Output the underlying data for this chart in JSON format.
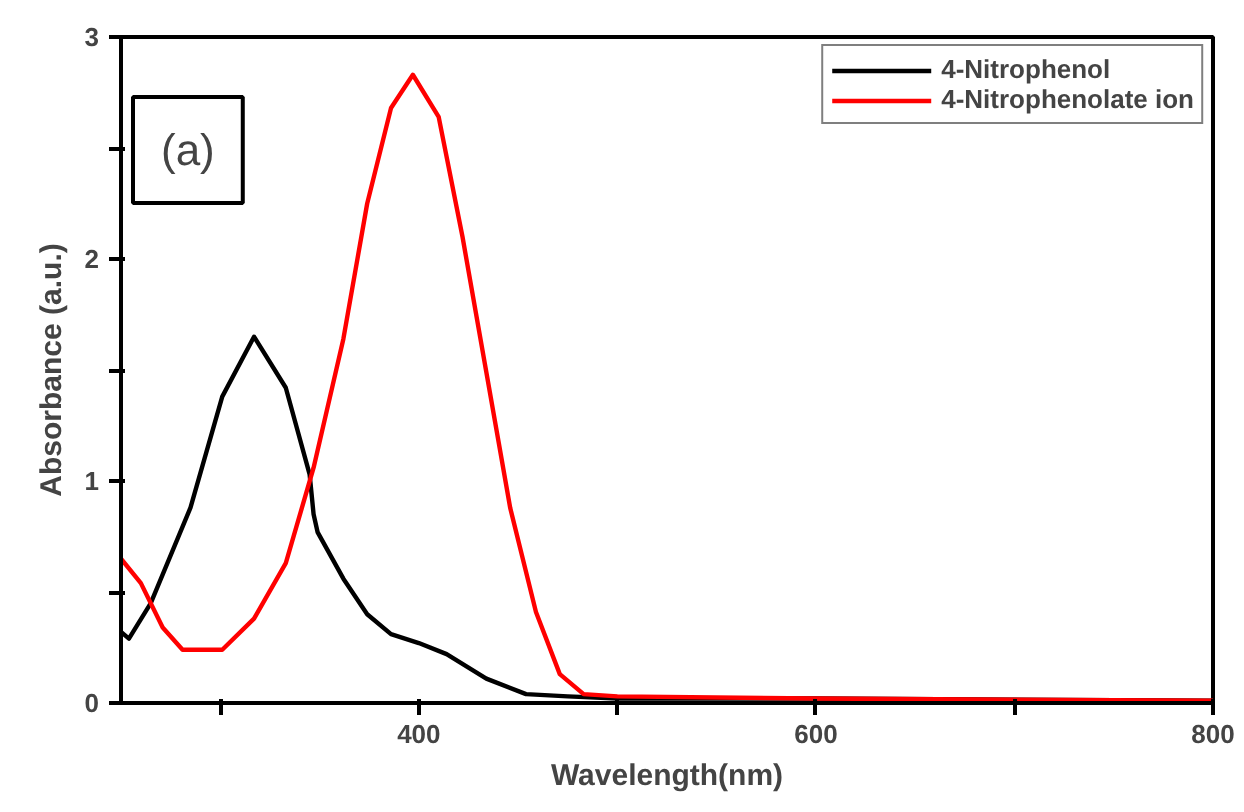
{
  "chart_data": {
    "type": "line",
    "xlabel": "Wavelength(nm)",
    "ylabel": "Absorbance (a.u.)",
    "annotations": [
      "(a)"
    ],
    "xlim": [
      250,
      800
    ],
    "xticks": [
      {
        "value": 300,
        "label": null
      },
      400,
      {
        "value": 500,
        "label": null
      },
      600,
      {
        "value": 700,
        "label": null
      },
      800
    ],
    "ylim": [
      0,
      3
    ],
    "yticks": [
      0,
      {
        "value": 0.5,
        "label": null
      },
      1,
      {
        "value": 1.5,
        "label": null
      },
      2,
      {
        "value": 2.5,
        "label": null
      },
      3
    ],
    "grid": false,
    "legend": "top right",
    "marker": "none",
    "line_style": "solid",
    "series": [
      {
        "name": "4-Nitrophenol",
        "color": "#000000",
        "x": [
          250,
          254,
          265,
          285,
          301,
          317,
          333,
          345,
          347,
          349,
          362,
          374,
          386,
          400,
          414,
          434,
          454,
          475,
          500,
          600,
          800
        ],
        "values": [
          0.32,
          0.29,
          0.45,
          0.88,
          1.38,
          1.65,
          1.42,
          1.03,
          0.85,
          0.77,
          0.56,
          0.4,
          0.31,
          0.27,
          0.22,
          0.11,
          0.04,
          0.03,
          0.02,
          0.02,
          0.01
        ]
      },
      {
        "name": "4-Nitrophenolate ion",
        "color": "#ff0000",
        "x": [
          250,
          260,
          271,
          281,
          301,
          317,
          333,
          347,
          362,
          374,
          386,
          397,
          410,
          422,
          434,
          446,
          459,
          471,
          483,
          500,
          600,
          800
        ],
        "values": [
          0.65,
          0.54,
          0.34,
          0.24,
          0.24,
          0.38,
          0.63,
          1.06,
          1.64,
          2.25,
          2.68,
          2.83,
          2.64,
          2.1,
          1.49,
          0.88,
          0.41,
          0.13,
          0.04,
          0.03,
          0.02,
          0.01
        ]
      }
    ]
  }
}
